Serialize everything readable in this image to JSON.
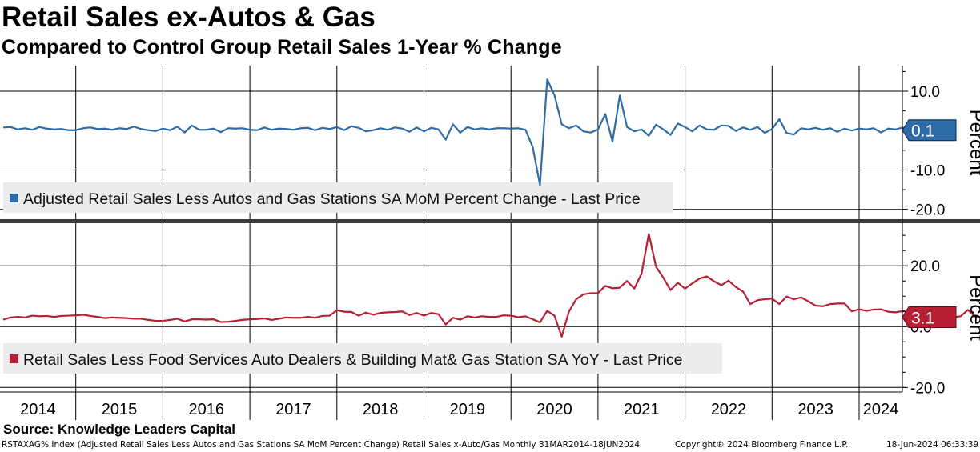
{
  "title": "Retail Sales ex-Autos & Gas",
  "subtitle": "Compared to Control Group Retail Sales 1-Year % Change",
  "source": "Source: Knowledge Leaders Capital",
  "footer": {
    "left": "RSTAXAG% Index (Adjusted Retail Sales Less Autos and Gas Stations SA MoM Percent Change) Retail Sales x-Auto/Gas  Monthly 31MAR2014-18JUN2024",
    "middle": "Copyright® 2024 Bloomberg Finance L.P.",
    "right": "18-Jun-2024 06:33:39"
  },
  "x_axis": {
    "years": [
      "2014",
      "2015",
      "2016",
      "2017",
      "2018",
      "2019",
      "2020",
      "2021",
      "2022",
      "2023",
      "2024"
    ]
  },
  "chart_data": [
    {
      "type": "line",
      "panel": "top",
      "ylabel": "Percent",
      "ylim": [
        -22.5,
        16.5
      ],
      "yticks": [
        10.0,
        -10.0,
        -20.0
      ],
      "ytick_labels": [
        "10.0",
        "-10.0",
        "-20.0"
      ],
      "color": "#2e6ca8",
      "x_start": "2014-03",
      "legend": "Adjusted Retail Sales Less Autos and Gas Stations SA MoM Percent Change - Last Price",
      "last_price_label": "0.1",
      "series": [
        {
          "name": "Adjusted Retail Sales Less Autos and Gas Stations SA MoM Percent Change",
          "values": [
            0.8,
            0.9,
            0.3,
            0.6,
            0.2,
            0.9,
            0.5,
            0.3,
            0.4,
            0.1,
            0.1,
            0.6,
            0.8,
            0.4,
            0.5,
            0.2,
            0.6,
            0.4,
            1.0,
            0.4,
            0.1,
            -0.1,
            0.5,
            0.1,
            1.0,
            -0.5,
            1.3,
            0.2,
            0.2,
            0.5,
            -0.4,
            0.6,
            0.5,
            0.6,
            0.2,
            0.1,
            0.8,
            0.2,
            0.5,
            0.4,
            0.2,
            0.6,
            0.7,
            0.1,
            0.7,
            0.4,
            0.9,
            0.1,
            1.1,
            0.7,
            -0.2,
            0.1,
            0.6,
            0.2,
            0.8,
            0.5,
            -0.3,
            0.8,
            -0.2,
            0.7,
            0.3,
            -2.3,
            1.6,
            -0.5,
            0.9,
            0.3,
            0.6,
            0.3,
            0.6,
            0.6,
            0.5,
            0.6,
            0.2,
            -4.2,
            -13.8,
            13.0,
            9.0,
            1.6,
            0.6,
            1.3,
            -0.2,
            -0.5,
            0.3,
            4.2,
            -2.8,
            8.9,
            0.9,
            -0.2,
            0.3,
            -1.3,
            1.5,
            0.3,
            -1.1,
            1.8,
            0.9,
            -0.2,
            1.3,
            0.3,
            0.2,
            1.3,
            1.2,
            -0.1,
            0.8,
            0.2,
            0.9,
            -0.6,
            0.4,
            2.9,
            -0.6,
            -1.0,
            0.6,
            0.3,
            0.7,
            0.2,
            0.6,
            -0.3,
            0.5,
            0.0,
            0.5,
            0.3,
            0.6,
            -0.5,
            0.5,
            0.3,
            0.8,
            -0.4,
            0.3,
            0.1
          ]
        }
      ]
    },
    {
      "type": "line",
      "panel": "bottom",
      "ylabel": "Percent",
      "ylim": [
        -21.5,
        34.0
      ],
      "yticks": [
        20.0,
        0.0,
        -20.0
      ],
      "ytick_labels": [
        "20.0",
        "0.0",
        "-20.0"
      ],
      "color": "#b71f35",
      "x_start": "2014-03",
      "legend": "Retail Sales Less Food Services Auto Dealers & Building Mat& Gas Station SA YoY - Last Price",
      "last_price_label": "3.1",
      "series": [
        {
          "name": "Retail Sales Less Food Services Auto Dealers & Building Mat& Gas Station SA YoY",
          "values": [
            2.3,
            3.0,
            3.2,
            3.0,
            3.6,
            3.4,
            3.5,
            3.2,
            3.5,
            3.6,
            3.7,
            3.9,
            3.5,
            3.2,
            2.8,
            3.0,
            2.9,
            2.8,
            2.6,
            2.6,
            2.2,
            1.9,
            1.9,
            2.2,
            2.6,
            1.7,
            2.4,
            2.4,
            2.3,
            2.4,
            1.5,
            1.6,
            1.9,
            2.2,
            2.4,
            2.5,
            2.7,
            2.2,
            2.6,
            3.0,
            2.9,
            2.9,
            3.2,
            2.9,
            3.5,
            3.6,
            5.4,
            4.9,
            4.8,
            3.6,
            4.6,
            3.9,
            4.5,
            4.7,
            4.8,
            5.0,
            3.8,
            4.5,
            3.6,
            4.5,
            4.1,
            0.7,
            2.9,
            2.3,
            3.4,
            3.0,
            3.4,
            3.2,
            3.2,
            3.7,
            3.6,
            3.1,
            3.4,
            2.4,
            1.4,
            5.2,
            3.6,
            -3.3,
            5.0,
            9.0,
            10.6,
            11.0,
            11.0,
            13.4,
            12.6,
            12.8,
            15.0,
            12.5,
            17.4,
            30.5,
            19.7,
            16.1,
            12.0,
            14.4,
            12.5,
            14.2,
            15.8,
            16.5,
            14.9,
            13.6,
            15.1,
            13.0,
            11.5,
            7.4,
            8.7,
            9.0,
            9.2,
            7.4,
            9.9,
            9.0,
            9.6,
            8.3,
            6.9,
            6.7,
            7.4,
            7.6,
            7.6,
            5.0,
            5.7,
            5.2,
            5.6,
            5.7,
            4.9,
            4.7,
            5.1,
            4.8,
            4.9,
            4.6,
            5.1,
            4.4,
            5.9,
            3.1,
            3.4,
            5.5,
            3.3,
            3.1
          ]
        }
      ]
    }
  ]
}
